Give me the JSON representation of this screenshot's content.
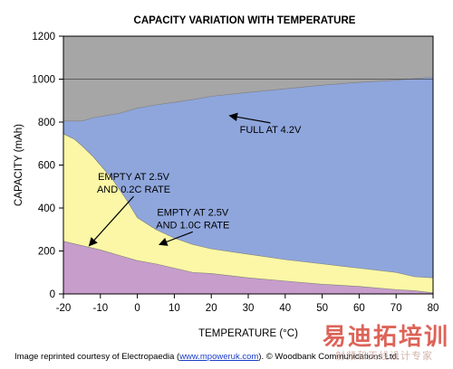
{
  "chart_data": {
    "type": "area",
    "title": "CAPACITY VARIATION WITH TEMPERATURE",
    "xlabel": "TEMPERATURE (°C)",
    "ylabel": "CAPACITY (mAh)",
    "xlim": [
      -20,
      80
    ],
    "ylim": [
      0,
      1200
    ],
    "xticks": [
      "-20",
      "-10",
      "0",
      "10",
      "20",
      "30",
      "40",
      "50",
      "60",
      "70",
      "80"
    ],
    "yticks": [
      "0",
      "200",
      "400",
      "600",
      "800",
      "1000",
      "1200"
    ],
    "grid": false,
    "reference_line": 1000,
    "series": [
      {
        "name": "FULL AT 4.2V",
        "color": "#8fa6dc",
        "x": [
          -20,
          -15,
          -12,
          -8,
          -5,
          0,
          5,
          10,
          15,
          20,
          30,
          40,
          50,
          60,
          70,
          80
        ],
        "values": [
          805,
          805,
          820,
          832,
          840,
          865,
          880,
          892,
          905,
          920,
          938,
          955,
          972,
          985,
          995,
          1010
        ]
      },
      {
        "name": "EMPTY AT 2.5V AND 1.0C RATE",
        "color": "#fbf7a6",
        "x": [
          -20,
          -17,
          -15,
          -12,
          -10,
          -7,
          -5,
          -3,
          0,
          5,
          10,
          15,
          20,
          30,
          40,
          50,
          60,
          70,
          75,
          80
        ],
        "values": [
          745,
          720,
          690,
          640,
          600,
          540,
          490,
          440,
          355,
          300,
          260,
          230,
          210,
          185,
          160,
          140,
          120,
          100,
          80,
          75
        ]
      },
      {
        "name": "EMPTY AT 2.5V AND 0.2C RATE",
        "color": "#c79dcb",
        "x": [
          -20,
          -15,
          -10,
          -5,
          0,
          5,
          10,
          15,
          20,
          30,
          40,
          50,
          60,
          70,
          75,
          80
        ],
        "values": [
          245,
          225,
          205,
          180,
          155,
          140,
          120,
          100,
          95,
          75,
          60,
          45,
          35,
          20,
          15,
          5
        ]
      }
    ],
    "annotations": [
      {
        "lines": [
          "FULL AT 4.2V"
        ],
        "x": 36,
        "y": 750,
        "arrow_to": [
          25,
          830
        ]
      },
      {
        "lines": [
          "EMPTY AT 2.5V",
          "AND 0.2C RATE"
        ],
        "x": -1,
        "y": 530,
        "arrow_to": [
          -13,
          225
        ]
      },
      {
        "lines": [
          "EMPTY AT 2.5V",
          "AND 1.0C RATE"
        ],
        "x": 15,
        "y": 365,
        "arrow_to": [
          6,
          230
        ]
      }
    ]
  },
  "credit": {
    "prefix": "Image reprinted courtesy of Electropaedia (",
    "link": "www.mpoweruk.com",
    "suffix": "). © Woodbank Communications Ltd."
  },
  "watermark": {
    "main": "易迪拓培训",
    "sub": "射频和天线设计专家"
  }
}
